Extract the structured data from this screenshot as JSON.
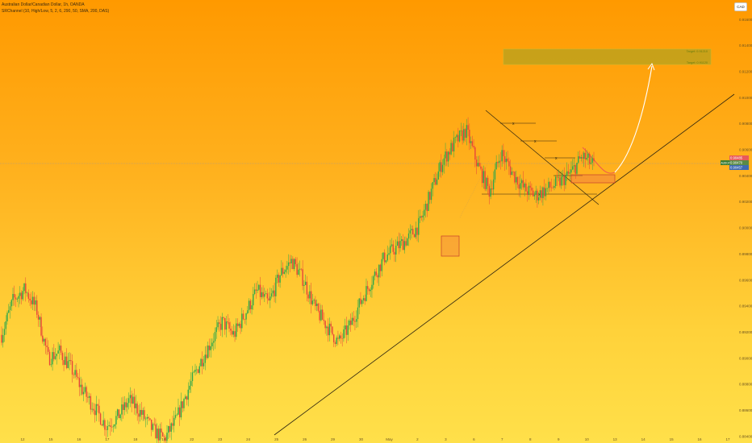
{
  "header": {
    "symbol_line": "Australian Dollar/Canadian Dollar, 1h, OANDA",
    "indicator_line": "SRChannel (10, High/Low, 5, 2, 6, 290, 50, SMA, 200, DAS)"
  },
  "currency_button": "CAD",
  "price_labels": {
    "sell_price": "0.90485",
    "symbol_tag": "AUDCAD",
    "current_price": "0.90470",
    "buy_price": "0.90457"
  },
  "target_zone_labels": {
    "upper": "Target: 0.91210",
    "lower": "Target: 0.91120"
  },
  "chart_data": {
    "type": "candlestick",
    "title": "Australian Dollar/Canadian Dollar, 1h, OANDA",
    "y_axis": {
      "min": 0.8835,
      "max": 0.9175,
      "ticks": [
        "0.91600",
        "0.91400",
        "0.91200",
        "0.91000",
        "0.90800",
        "0.90600",
        "0.90400",
        "0.90200",
        "0.90000",
        "0.89800",
        "0.89600",
        "0.89400",
        "0.89200",
        "0.89000",
        "0.88800",
        "0.88600",
        "0.88400"
      ]
    },
    "x_axis": {
      "ticks": [
        "12",
        "15",
        "16",
        "17",
        "18",
        "19",
        "22",
        "23",
        "24",
        "25",
        "26",
        "29",
        "30",
        "May",
        "2",
        "3",
        "6",
        "7",
        "8",
        "9",
        "10",
        "13",
        "14",
        "15",
        "16",
        "17"
      ]
    },
    "current_price": 0.9047,
    "price_path": [
      [
        "12",
        0.8918
      ],
      [
        "12",
        0.8945
      ],
      [
        "15",
        0.8953
      ],
      [
        "15",
        0.8938
      ],
      [
        "15",
        0.89
      ],
      [
        "16",
        0.8905
      ],
      [
        "16",
        0.8892
      ],
      [
        "16",
        0.8875
      ],
      [
        "17",
        0.8862
      ],
      [
        "17",
        0.8848
      ],
      [
        "17",
        0.8855
      ],
      [
        "18",
        0.8868
      ],
      [
        "18",
        0.8858
      ],
      [
        "18",
        0.8845
      ],
      [
        "19",
        0.8838
      ],
      [
        "24",
        0.8852
      ],
      [
        "24",
        0.8875
      ],
      [
        "25",
        0.8895
      ],
      [
        "25",
        0.8912
      ],
      [
        "26",
        0.8928
      ],
      [
        "26",
        0.8918
      ],
      [
        "26",
        0.8935
      ],
      [
        "29",
        0.8952
      ],
      [
        "29",
        0.8942
      ],
      [
        "29",
        0.8965
      ],
      [
        "30",
        0.8975
      ],
      [
        "30",
        0.896
      ],
      [
        "30",
        0.8938
      ],
      [
        "May",
        0.8925
      ],
      [
        "May",
        0.8912
      ],
      [
        "May",
        0.8925
      ],
      [
        "2",
        0.8945
      ],
      [
        "2",
        0.8962
      ],
      [
        "2",
        0.8978
      ],
      [
        "3",
        0.8985
      ],
      [
        "3",
        0.8992
      ],
      [
        "3",
        0.9003
      ],
      [
        "3",
        0.9028
      ],
      [
        "6",
        0.9052
      ],
      [
        "6",
        0.9065
      ],
      [
        "7",
        0.9075
      ],
      [
        "7",
        0.9048
      ],
      [
        "7",
        0.9028
      ],
      [
        "8",
        0.9058
      ],
      [
        "8",
        0.9042
      ],
      [
        "8",
        0.903
      ],
      [
        "9",
        0.9025
      ],
      [
        "9",
        0.903
      ],
      [
        "9",
        0.9035
      ],
      [
        "10",
        0.9042
      ],
      [
        "10",
        0.9055
      ],
      [
        "10",
        0.9048
      ]
    ],
    "annotations": {
      "trendline_label": "ascending trendline",
      "x_markers": [
        "x",
        "x",
        "x",
        "x",
        "x"
      ],
      "projection_target_zone": [
        0.9112,
        0.9121
      ]
    }
  }
}
